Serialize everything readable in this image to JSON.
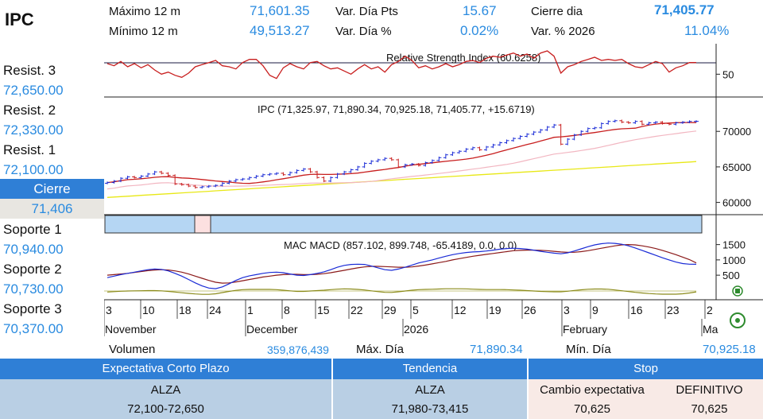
{
  "ticker": "IPC",
  "header": {
    "max12_label": "Máximo 12 m",
    "max12_value": "71,601.35",
    "min12_label": "Mínimo 12 m",
    "min12_value": "49,513.27",
    "vardia_pts_label": "Var. Día Pts",
    "vardia_pts_value": "15.67",
    "vardia_pct_label": "Var. Día %",
    "vardia_pct_value": "0.02%",
    "cierre_dia_label": "Cierre dia",
    "cierre_dia_value": "71,405.77",
    "var2026_label": "Var. % 2026",
    "var2026_value": "11.04%"
  },
  "levels": {
    "resist3_label": "Resist. 3",
    "resist3_value": "72,650.00",
    "resist2_label": "Resist. 2",
    "resist2_value": "72,330.00",
    "resist1_label": "Resist. 1",
    "resist1_value": "72,100.00",
    "cierre_label": "Cierre",
    "cierre_value": "71,406",
    "soporte1_label": "Soporte 1",
    "soporte1_value": "70,940.00",
    "soporte2_label": "Soporte 2",
    "soporte2_value": "70,730.00",
    "soporte3_label": "Soporte 3",
    "soporte3_value": "70,370.00"
  },
  "volume_row": {
    "volumen_label": "Volumen",
    "volumen_value": "359,876,439",
    "maxdia_label": "Máx. Día",
    "maxdia_value": "71,890.34",
    "mindia_label": "Mín. Día",
    "mindia_value": "70,925.18"
  },
  "summary": {
    "expectativa_header": "Expectativa Corto Plazo",
    "tendencia_header": "Tendencia",
    "stop_header": "Stop",
    "expectativa_value": "ALZA",
    "expectativa_range": "72,100-72,650",
    "tendencia_value": "ALZA",
    "tendencia_range": "71,980-73,415",
    "cambio_label": "Cambio expectativa",
    "cambio_value": "70,625",
    "definitivo_label": "DEFINITIVO",
    "definitivo_value": "70,625"
  },
  "colors": {
    "accent_blue": "#2a8be0",
    "header_blue": "#2f7fd6",
    "rsi_line": "#c81e1e",
    "candle_up": "#1a2bd6",
    "candle_down": "#c81e1e",
    "ma_short": "#c81e1e",
    "ma_mid": "#f2b6c1",
    "ma_long": "#e8e816",
    "macd_line": "#1a2bd6",
    "signal_line": "#8b1a1a"
  },
  "chart_data": [
    {
      "type": "line",
      "title": "Relative Strength Index (60.6258)",
      "ylim": [
        30,
        75
      ],
      "y_ticks": [
        "50"
      ],
      "reference_line": 68,
      "series": [
        {
          "values": [
            60,
            58,
            62,
            57,
            60,
            56,
            59,
            54,
            50,
            52,
            49,
            47,
            51,
            57,
            59,
            61,
            63,
            58,
            57,
            55,
            61,
            64,
            64,
            58,
            49,
            46,
            56,
            60,
            57,
            55,
            61,
            62,
            58,
            55,
            56,
            53,
            50,
            55,
            59,
            55,
            57,
            52,
            59,
            62,
            67,
            63,
            56,
            58,
            55,
            57,
            60,
            57,
            59,
            62,
            63,
            61,
            65,
            67,
            66,
            68,
            70,
            67,
            69,
            65,
            70,
            72,
            67,
            51,
            57,
            59,
            62,
            64,
            66,
            63,
            64,
            63,
            64,
            60,
            57,
            56,
            59,
            62,
            60,
            52,
            56,
            58,
            61,
            61
          ]
        }
      ]
    },
    {
      "type": "candlestick",
      "title": "IPC (71,325.97, 71,890.34, 70,925.18, 71,405.77, +15.6719)",
      "ylim": [
        58500,
        74500
      ],
      "y_ticks": [
        "60000",
        "65000",
        "70000"
      ],
      "closes": [
        62800,
        63000,
        63400,
        63600,
        63500,
        63700,
        64000,
        64300,
        64100,
        63800,
        62600,
        62500,
        62300,
        62100,
        62200,
        62300,
        62400,
        62700,
        63000,
        63200,
        63300,
        63500,
        63700,
        63900,
        64000,
        64100,
        63900,
        64200,
        64500,
        64700,
        64300,
        63500,
        63000,
        63500,
        64000,
        64300,
        64600,
        65000,
        65500,
        65800,
        66000,
        66200,
        66000,
        65000,
        65300,
        65400,
        65200,
        65600,
        65900,
        66300,
        66700,
        67000,
        67200,
        67500,
        67700,
        67400,
        67800,
        68100,
        68400,
        68700,
        69000,
        69300,
        69600,
        69900,
        70200,
        70600,
        70900,
        68200,
        68900,
        69500,
        70000,
        70400,
        70500,
        71100,
        71400,
        71500,
        71300,
        71200,
        71400,
        71000,
        71200,
        71300,
        71100,
        71000,
        71200,
        71300,
        71400,
        71406
      ]
    },
    {
      "type": "line",
      "title": "MAC MACD (857.102, 899.748, -65.4189, 0.0, 0.0)",
      "ylim": [
        -250,
        1750
      ],
      "y_ticks": [
        "1500",
        "1000",
        "500",
        "0"
      ],
      "series": [
        {
          "name": "MACD",
          "values": [
            420,
            470,
            520,
            560,
            600,
            640,
            680,
            700,
            690,
            640,
            560,
            470,
            360,
            250,
            150,
            80,
            60,
            120,
            220,
            330,
            420,
            480,
            520,
            560,
            590,
            600,
            580,
            540,
            500,
            490,
            520,
            560,
            610,
            680,
            760,
            820,
            850,
            860,
            850,
            800,
            740,
            680,
            660,
            700,
            760,
            830,
            900,
            950,
            1000,
            1060,
            1120,
            1170,
            1210,
            1240,
            1260,
            1270,
            1290,
            1320,
            1350,
            1370,
            1380,
            1370,
            1350,
            1320,
            1280,
            1250,
            1220,
            1200,
            1230,
            1290,
            1360,
            1430,
            1490,
            1530,
            1550,
            1540,
            1510,
            1460,
            1390,
            1310,
            1230,
            1150,
            1070,
            1000,
            930,
            880,
            860,
            857
          ]
        },
        {
          "name": "Signal",
          "values": [
            500,
            520,
            540,
            560,
            590,
            620,
            650,
            670,
            680,
            670,
            640,
            600,
            540,
            470,
            400,
            330,
            270,
            240,
            250,
            280,
            320,
            360,
            400,
            440,
            470,
            500,
            520,
            530,
            530,
            520,
            520,
            530,
            550,
            580,
            620,
            660,
            700,
            740,
            770,
            790,
            790,
            780,
            770,
            760,
            760,
            770,
            800,
            830,
            870,
            910,
            950,
            1000,
            1040,
            1080,
            1120,
            1150,
            1180,
            1210,
            1240,
            1270,
            1300,
            1310,
            1320,
            1320,
            1310,
            1300,
            1280,
            1260,
            1250,
            1250,
            1270,
            1300,
            1340,
            1380,
            1420,
            1460,
            1490,
            1500,
            1490,
            1460,
            1420,
            1370,
            1310,
            1240,
            1170,
            1090,
            1010,
            900
          ]
        },
        {
          "name": "Histogram",
          "values": [
            -80,
            -50,
            -20,
            0,
            10,
            20,
            30,
            30,
            10,
            -30,
            -80,
            -130,
            -180,
            -220,
            -250,
            -250,
            -210,
            -120,
            -30,
            50,
            100,
            120,
            120,
            120,
            120,
            100,
            60,
            10,
            -30,
            -30,
            0,
            30,
            60,
            100,
            140,
            160,
            150,
            120,
            80,
            10,
            -50,
            -100,
            -110,
            -60,
            0,
            60,
            100,
            120,
            130,
            150,
            170,
            170,
            170,
            160,
            140,
            120,
            110,
            110,
            110,
            100,
            80,
            60,
            30,
            0,
            -30,
            -50,
            -60,
            -60,
            -20,
            40,
            90,
            130,
            150,
            150,
            130,
            80,
            20,
            -40,
            -100,
            -150,
            -190,
            -220,
            -240,
            -240,
            -240,
            -210,
            -150,
            -65
          ]
        }
      ]
    }
  ],
  "x_axis": {
    "days": [
      "3",
      "10",
      "18",
      "24",
      "1",
      "8",
      "15",
      "22",
      "29",
      "5",
      "12",
      "19",
      "26",
      "3",
      "9",
      "16",
      "23",
      "2"
    ],
    "months": [
      "November",
      "December",
      "2026",
      "February",
      "Ma"
    ]
  }
}
